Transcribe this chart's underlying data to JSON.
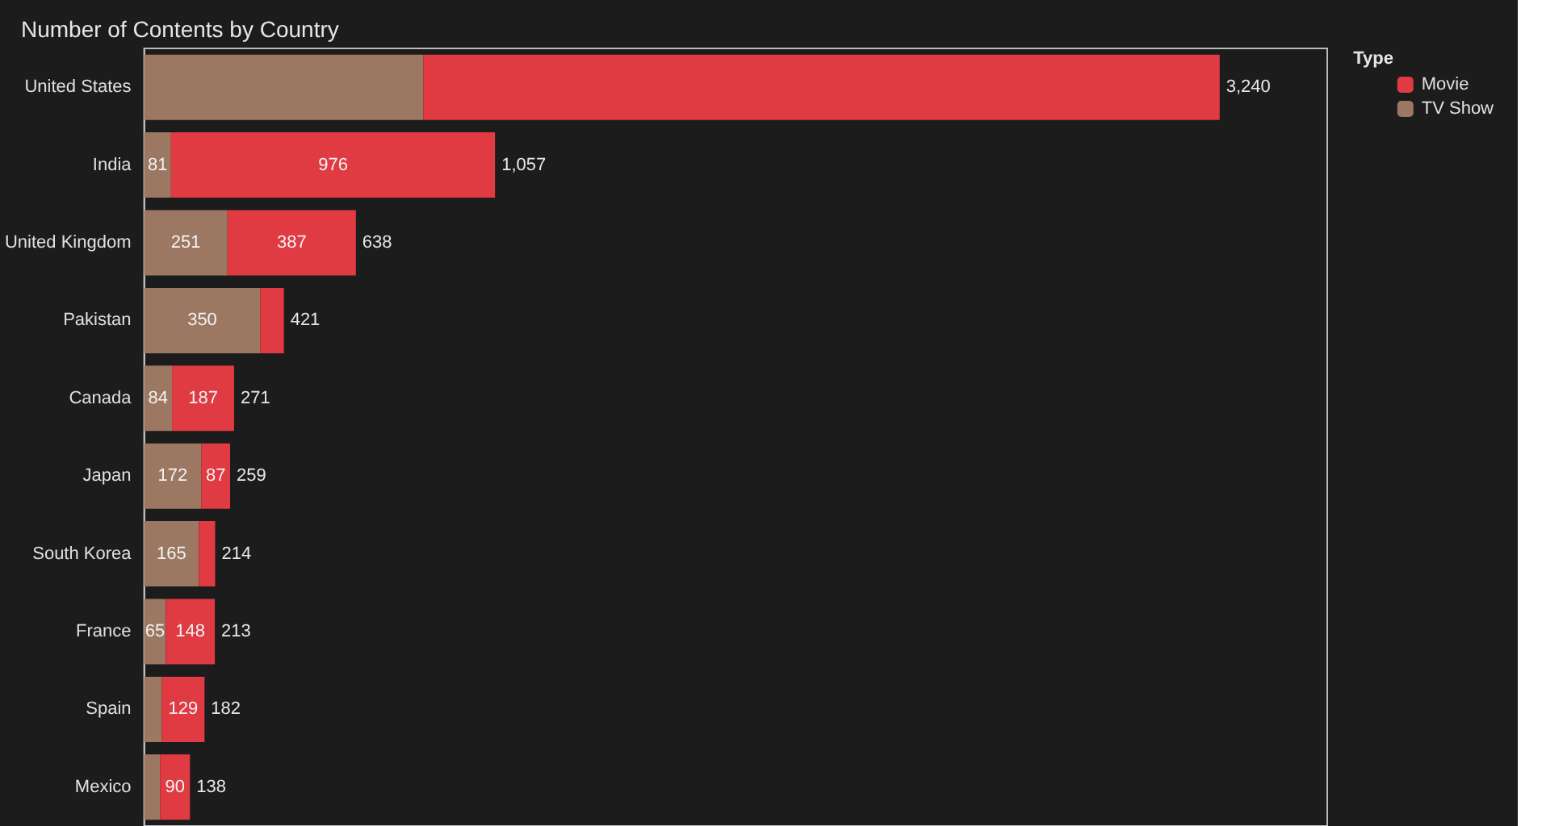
{
  "chart_data": {
    "type": "bar",
    "orientation": "horizontal",
    "stacked": true,
    "title": "Number of Contents by Country",
    "legend_title": "Type",
    "legend": "top right",
    "categories": [
      "United States",
      "India",
      "United Kingdom",
      "Pakistan",
      "Canada",
      "Japan",
      "South Korea",
      "France",
      "Spain",
      "Mexico"
    ],
    "series": [
      {
        "name": "TV Show",
        "color": "#9c7862",
        "values": [
          841,
          81,
          251,
          350,
          84,
          172,
          165,
          65,
          53,
          48
        ],
        "value_labels": [
          null,
          "81",
          "251",
          "350",
          "84",
          "172",
          "165",
          "65",
          null,
          null
        ]
      },
      {
        "name": "Movie",
        "color": "#e03a42",
        "values": [
          2399,
          976,
          387,
          71,
          187,
          87,
          49,
          148,
          129,
          90
        ],
        "value_labels": [
          null,
          "976",
          "387",
          null,
          "187",
          "87",
          null,
          "148",
          "129",
          "90"
        ]
      }
    ],
    "totals": [
      "3,240",
      "1,057",
      "638",
      "421",
      "271",
      "259",
      "214",
      "213",
      "182",
      "138"
    ]
  }
}
